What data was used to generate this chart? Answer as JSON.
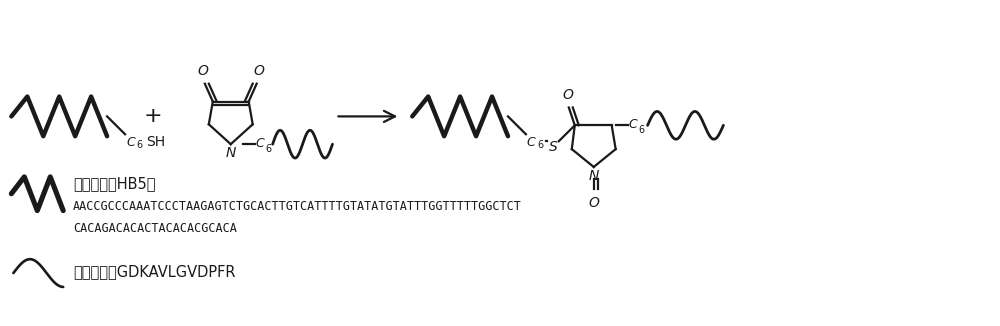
{
  "background_color": "#ffffff",
  "fig_width": 10.0,
  "fig_height": 3.26,
  "dpi": 100,
  "line_color": "#1a1a1a",
  "thick_lw": 3.2,
  "thin_lw": 1.6,
  "text_color": "#1a1a1a",
  "label_fontsize": 10.5,
  "seq_fontsize": 9.0,
  "aptamer_label": "核酸适配体HB5：",
  "aptamer_seq1": "AACCGCCCAAATCCCTAAGAGTCTGCACTTGTCATTTTGTATATGTATTTGGTTTTTGGCTCT",
  "aptamer_seq2": "CACAGACACACTACACACGCACA",
  "peptide_label": "底物多肽：GDKAVLGVDPFR"
}
